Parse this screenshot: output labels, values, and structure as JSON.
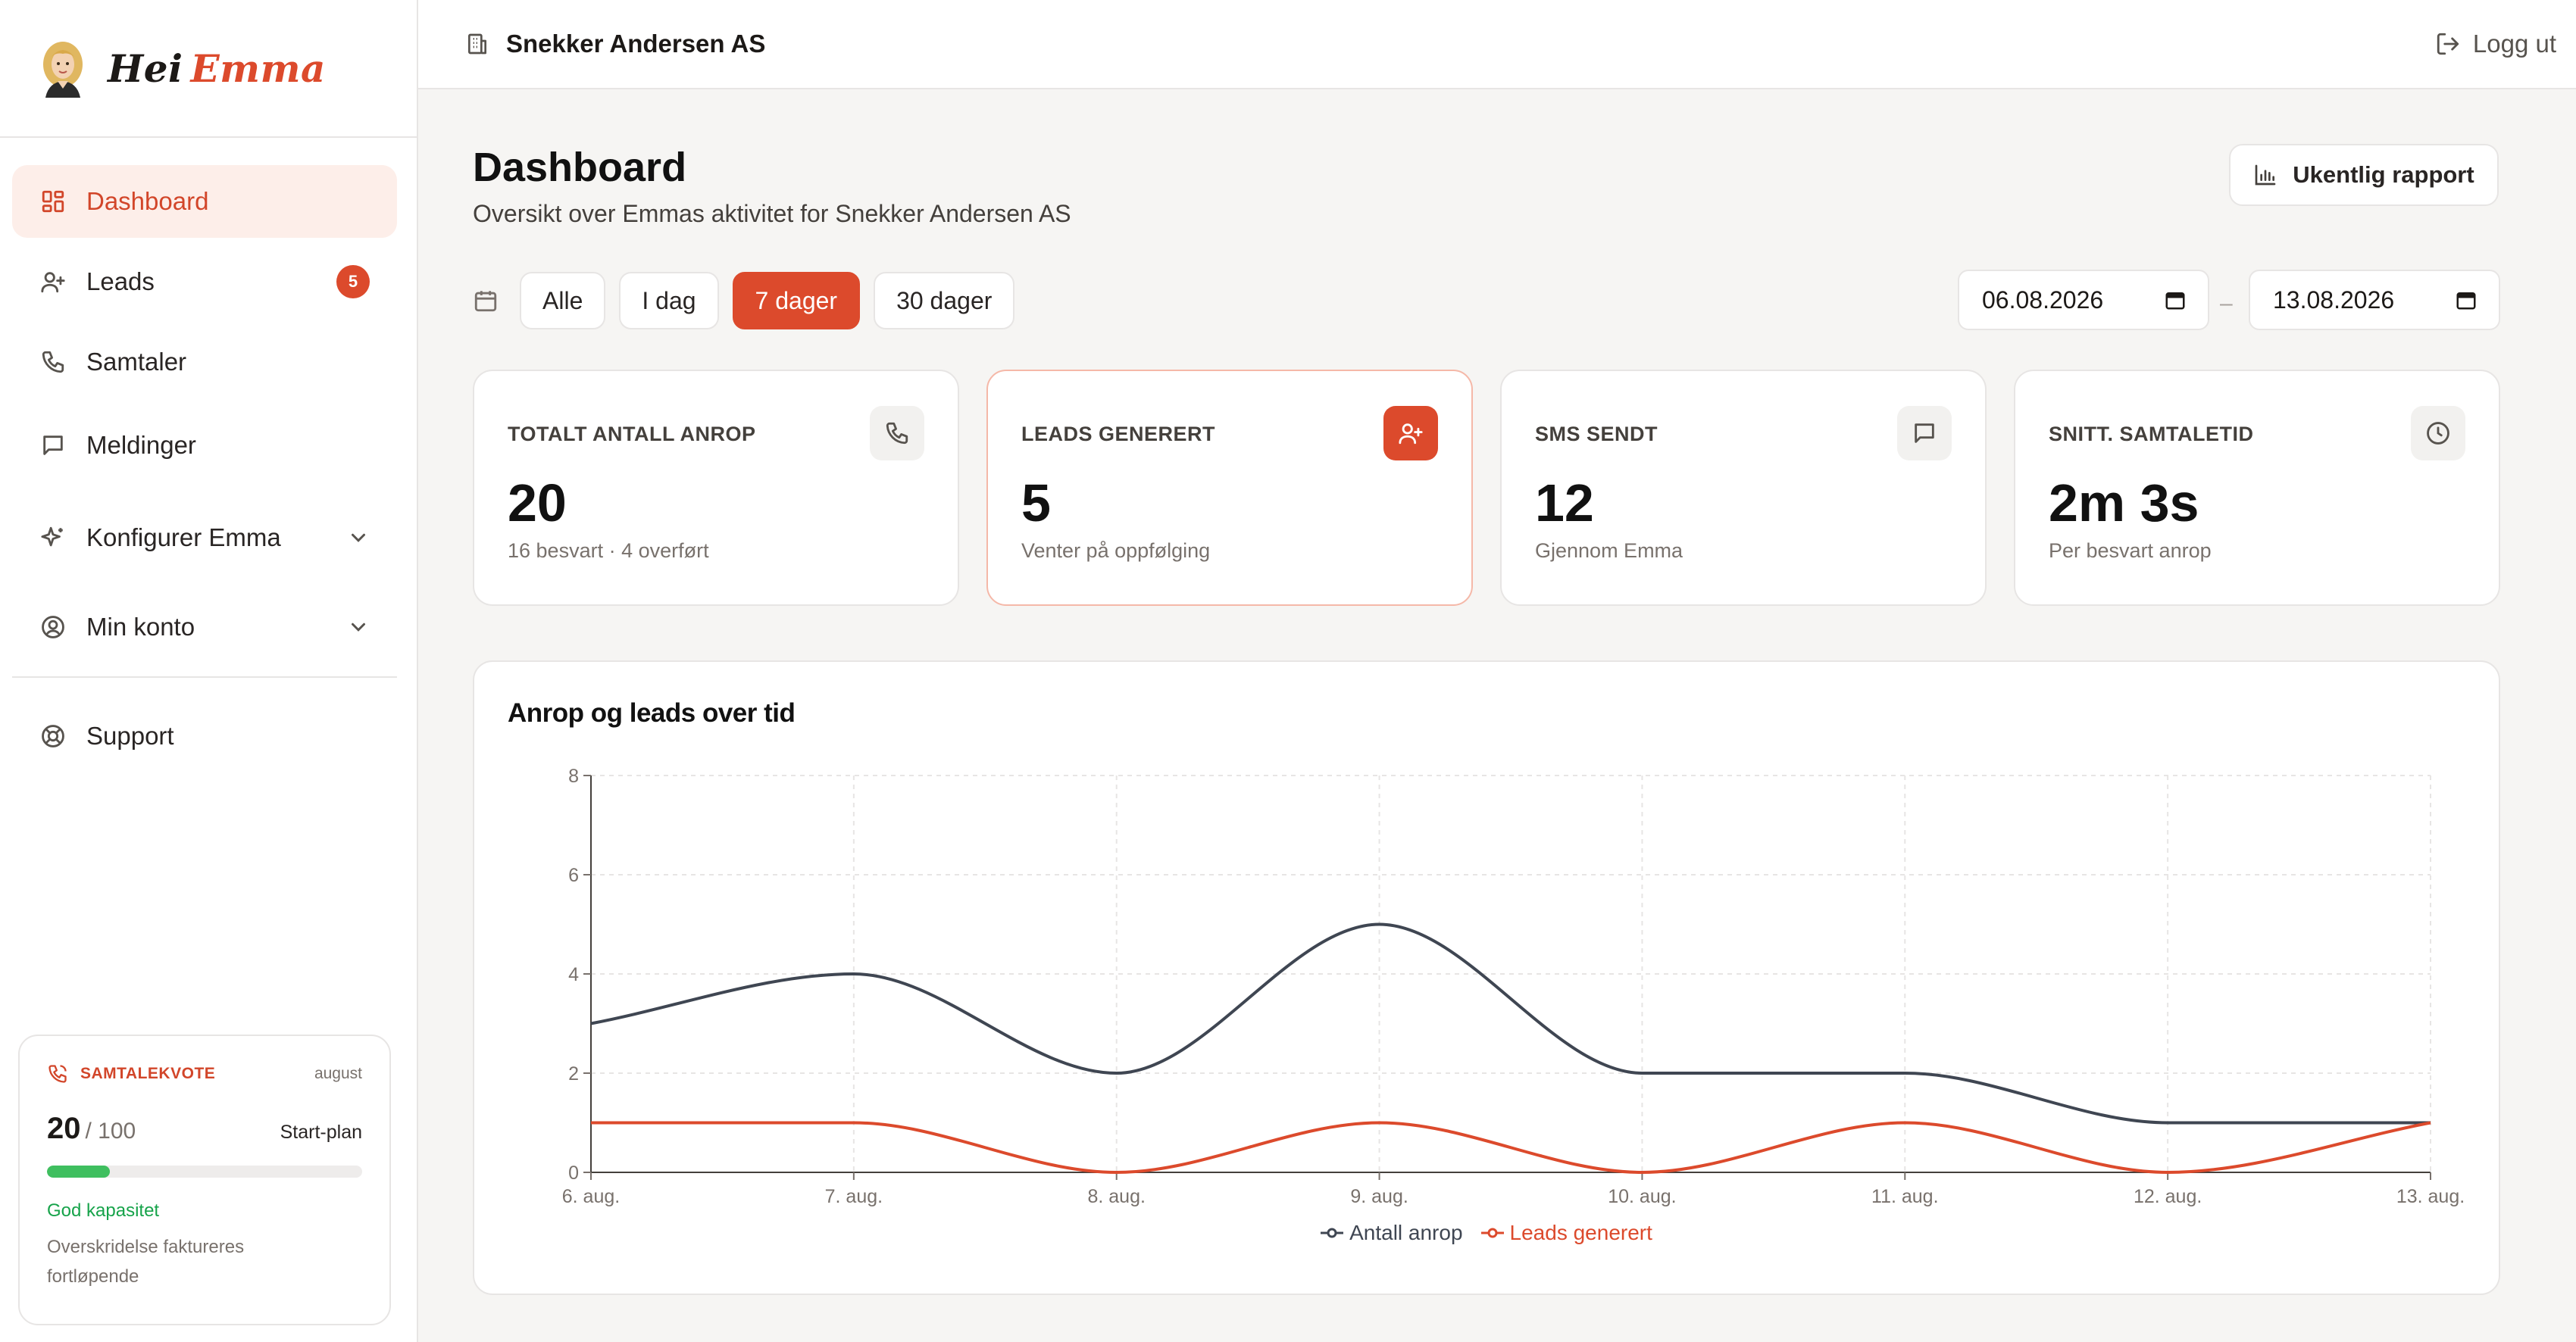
{
  "brand": {
    "hei": "Hei",
    "emma": "Emma"
  },
  "nav": {
    "items": [
      {
        "label": "Dashboard",
        "icon": "dashboard-icon",
        "active": true
      },
      {
        "label": "Leads",
        "icon": "user-plus-icon",
        "badge": "5"
      },
      {
        "label": "Samtaler",
        "icon": "phone-icon"
      },
      {
        "label": "Meldinger",
        "icon": "message-icon"
      },
      {
        "label": "Konfigurer Emma",
        "icon": "sparkles-icon",
        "expandable": true
      },
      {
        "label": "Min konto",
        "icon": "user-circle-icon",
        "expandable": true
      }
    ],
    "support": {
      "label": "Support",
      "icon": "lifebuoy-icon"
    }
  },
  "quota": {
    "title": "SAMTALEKVOTE",
    "month": "august",
    "used": "20",
    "max": "/ 100",
    "plan": "Start-plan",
    "progress": 0.2,
    "status": "God kapasitet",
    "note": "Overskridelse faktureres fortløpende"
  },
  "topbar": {
    "company": "Snekker Andersen AS",
    "logout": "Logg ut"
  },
  "page": {
    "title": "Dashboard",
    "subtitle": "Oversikt over Emmas aktivitet for Snekker Andersen AS",
    "report_button": "Ukentlig rapport"
  },
  "filters": {
    "chips": [
      "Alle",
      "I dag",
      "7 dager",
      "30 dager"
    ],
    "active": "7 dager",
    "date_from": "06.08.2026",
    "date_to": "13.08.2026",
    "separator": "–"
  },
  "cards": [
    {
      "label": "TOTALT ANTALL ANROP",
      "value": "20",
      "sub": "16 besvart · 4 overført",
      "icon": "phone-icon"
    },
    {
      "label": "LEADS GENERERT",
      "value": "5",
      "sub": "Venter på oppfølging",
      "icon": "user-plus-icon",
      "highlight": true
    },
    {
      "label": "SMS SENDT",
      "value": "12",
      "sub": "Gjennom Emma",
      "icon": "message-icon"
    },
    {
      "label": "SNITT. SAMTALETID",
      "value": "2m 3s",
      "sub": "Per besvart anrop",
      "icon": "clock-icon"
    }
  ],
  "colors": {
    "accent": "#dc4a2c",
    "dark_series": "#3f4652",
    "success": "#16a34a"
  },
  "chart_data": {
    "type": "line",
    "title": "Anrop og leads over tid",
    "categories": [
      "6. aug.",
      "7. aug.",
      "8. aug.",
      "9. aug.",
      "10. aug.",
      "11. aug.",
      "12. aug.",
      "13. aug."
    ],
    "series": [
      {
        "name": "Antall anrop",
        "values": [
          3,
          4,
          2,
          5,
          2,
          2,
          1,
          1
        ],
        "color": "#3f4652"
      },
      {
        "name": "Leads generert",
        "values": [
          1,
          1,
          0,
          1,
          0,
          1,
          0,
          1
        ],
        "color": "#dc4a2c"
      }
    ],
    "ylim": [
      0,
      8
    ],
    "yticks": [
      0,
      2,
      4,
      6,
      8
    ],
    "grid": true,
    "legend": "bottom-center"
  }
}
